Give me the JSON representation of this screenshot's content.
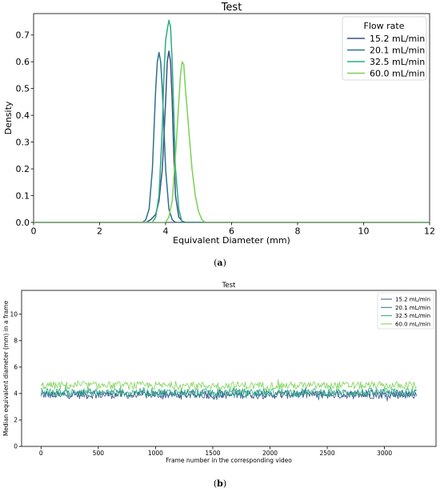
{
  "chart_data": [
    {
      "type": "line",
      "title": "Test",
      "xlabel": "Equivalent Diameter (mm)",
      "ylabel": "Density",
      "xlim": [
        0,
        12
      ],
      "ylim": [
        0,
        0.78
      ],
      "x_ticks": [
        0,
        2,
        4,
        6,
        8,
        10,
        12
      ],
      "y_ticks": [
        0.0,
        0.1,
        0.2,
        0.3,
        0.4,
        0.5,
        0.6,
        0.7
      ],
      "y_tick_labels": [
        "0.0",
        "0.1",
        "0.2",
        "0.3",
        "0.4",
        "0.5",
        "0.6",
        "0.7"
      ],
      "grid": false,
      "legend": {
        "title": "Flow rate",
        "placement": "top-right"
      },
      "series": [
        {
          "name": "15.2 mL/min",
          "color": "#3b528b",
          "x": [
            3.4,
            3.55,
            3.7,
            3.8,
            3.9,
            4.0,
            4.05,
            4.1,
            4.15,
            4.2,
            4.25,
            4.3,
            4.4,
            4.5,
            4.6
          ],
          "y": [
            0.0,
            0.01,
            0.03,
            0.08,
            0.2,
            0.45,
            0.6,
            0.64,
            0.6,
            0.45,
            0.25,
            0.1,
            0.02,
            0.005,
            0.0
          ]
        },
        {
          "name": "20.1 mL/min",
          "color": "#2c728e",
          "x": [
            3.3,
            3.4,
            3.5,
            3.6,
            3.65,
            3.7,
            3.75,
            3.8,
            3.85,
            3.9,
            3.95,
            4.0,
            4.1,
            4.2,
            4.3
          ],
          "y": [
            0.0,
            0.01,
            0.05,
            0.2,
            0.35,
            0.5,
            0.6,
            0.635,
            0.6,
            0.5,
            0.35,
            0.2,
            0.05,
            0.01,
            0.0
          ]
        },
        {
          "name": "32.5 mL/min",
          "color": "#27ad81",
          "x": [
            3.6,
            3.7,
            3.8,
            3.9,
            3.95,
            4.0,
            4.05,
            4.1,
            4.15,
            4.2,
            4.25,
            4.3,
            4.4,
            4.5
          ],
          "y": [
            0.0,
            0.02,
            0.1,
            0.35,
            0.55,
            0.68,
            0.72,
            0.755,
            0.73,
            0.6,
            0.4,
            0.2,
            0.05,
            0.0
          ]
        },
        {
          "name": "60.0 mL/min",
          "color": "#7ad151",
          "x": [
            4.0,
            4.1,
            4.2,
            4.3,
            4.4,
            4.45,
            4.5,
            4.55,
            4.6,
            4.7,
            4.8,
            4.9,
            5.0,
            5.1,
            5.2
          ],
          "y": [
            0.0,
            0.02,
            0.08,
            0.25,
            0.45,
            0.55,
            0.6,
            0.59,
            0.5,
            0.35,
            0.2,
            0.1,
            0.04,
            0.01,
            0.0
          ]
        }
      ]
    },
    {
      "type": "line",
      "title": "Test",
      "xlabel": "Frame number in the corresponding video",
      "ylabel": "Median equivalent diameter (mm) in a frame",
      "xlim": [
        -170,
        3450
      ],
      "ylim": [
        0,
        11.8
      ],
      "x_ticks": [
        0,
        500,
        1000,
        1500,
        2000,
        2500,
        3000
      ],
      "y_ticks": [
        0,
        2,
        4,
        6,
        8,
        10
      ],
      "grid": false,
      "legend": {
        "placement": "top-right"
      },
      "frames": [
        0,
        3280
      ],
      "series": [
        {
          "name": "15.2 mL/min",
          "color": "#3b528b",
          "mean": 3.9,
          "noise": 0.3
        },
        {
          "name": "20.1 mL/min",
          "color": "#2c728e",
          "mean": 4.0,
          "noise": 0.3
        },
        {
          "name": "32.5 mL/min",
          "color": "#27ad81",
          "mean": 4.1,
          "noise": 0.3
        },
        {
          "name": "60.0 mL/min",
          "color": "#7ad151",
          "mean": 4.6,
          "noise": 0.3
        }
      ]
    }
  ],
  "captions": [
    {
      "open": "(",
      "letter": "a",
      "close": ")"
    },
    {
      "open": "(",
      "letter": "b",
      "close": ")"
    }
  ]
}
